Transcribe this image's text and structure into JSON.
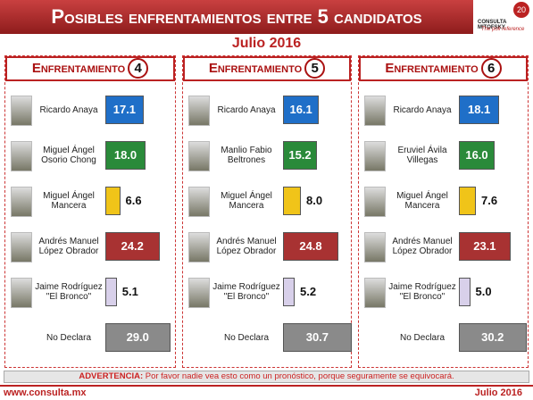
{
  "header": {
    "title": "Posibles enfrentamientos entre 5 candidatos",
    "subtitle": "Julio 2016",
    "logo": {
      "name": "CONSULTA MITOFSKY",
      "tagline": "The poll reference",
      "badge": "20"
    }
  },
  "chart_data": [
    {
      "type": "bar",
      "title": "Enfrentamiento",
      "number": "4",
      "categories": [
        "Ricardo Anaya",
        "Miguel Ángel\nOsorio Chong",
        "Miguel Ángel\nMancera",
        "Andrés Manuel\nLópez Obrador",
        "Jaime Rodríguez\n\"El Bronco\"",
        "No Declara"
      ],
      "values": [
        17.1,
        18.0,
        6.6,
        24.2,
        5.1,
        29.0
      ],
      "value_labels": [
        "17.1",
        "18.0",
        "6.6",
        "24.2",
        "5.1",
        "29.0"
      ],
      "colors": [
        "#1f6fc8",
        "#2a8a3a",
        "#f0c419",
        "#a83232",
        "#d8d0ea",
        "#8a8a8a"
      ],
      "xlim": [
        0,
        32
      ]
    },
    {
      "type": "bar",
      "title": "Enfrentamiento",
      "number": "5",
      "categories": [
        "Ricardo Anaya",
        "Manlio Fabio\nBeltrones",
        "Miguel Ángel\nMancera",
        "Andrés Manuel\nLópez Obrador",
        "Jaime Rodríguez\n\"El Bronco\"",
        "No Declara"
      ],
      "values": [
        16.1,
        15.2,
        8.0,
        24.8,
        5.2,
        30.7
      ],
      "value_labels": [
        "16.1",
        "15.2",
        "8.0",
        "24.8",
        "5.2",
        "30.7"
      ],
      "colors": [
        "#1f6fc8",
        "#2a8a3a",
        "#f0c419",
        "#a83232",
        "#d8d0ea",
        "#8a8a8a"
      ],
      "xlim": [
        0,
        32
      ]
    },
    {
      "type": "bar",
      "title": "Enfrentamiento",
      "number": "6",
      "categories": [
        "Ricardo Anaya",
        "Eruviel Ávila\nVillegas",
        "Miguel Ángel\nMancera",
        "Andrés Manuel\nLópez Obrador",
        "Jaime Rodríguez\n\"El Bronco\"",
        "No Declara"
      ],
      "values": [
        18.1,
        16.0,
        7.6,
        23.1,
        5.0,
        30.2
      ],
      "value_labels": [
        "18.1",
        "16.0",
        "7.6",
        "23.1",
        "5.0",
        "30.2"
      ],
      "colors": [
        "#1f6fc8",
        "#2a8a3a",
        "#f0c419",
        "#a83232",
        "#d8d0ea",
        "#8a8a8a"
      ],
      "xlim": [
        0,
        32
      ]
    }
  ],
  "warning": {
    "label": "ADVERTENCIA:",
    "text": "Por favor nadie vea esto como un pronóstico, porque seguramente se equivocará."
  },
  "footer": {
    "url": "www.consulta.mx",
    "date": "Julio 2016"
  }
}
